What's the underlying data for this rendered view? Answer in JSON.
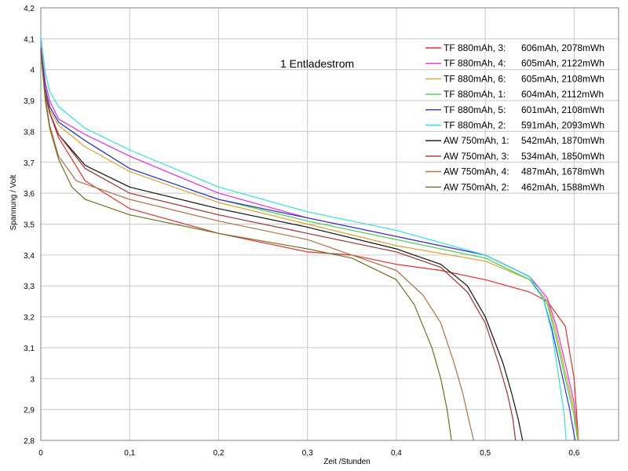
{
  "chart_data": {
    "type": "line",
    "annotation": "1 Entladestrom",
    "xlabel": "Zeit /Stunden",
    "ylabel": "Spannung / Volt",
    "xlim": [
      0,
      0.65
    ],
    "ylim": [
      2.8,
      4.2
    ],
    "xticks": [
      "0",
      "0,1",
      "0,2",
      "0,3",
      "0,4",
      "0,5",
      "0,6"
    ],
    "xtick_values": [
      0,
      0.1,
      0.2,
      0.3,
      0.4,
      0.5,
      0.6
    ],
    "yticks": [
      "2,8",
      "2,9",
      "3",
      "3,1",
      "3,2",
      "3,3",
      "3,4",
      "3,5",
      "3,6",
      "3,7",
      "3,8",
      "3,9",
      "4",
      "4,1",
      "4,2"
    ],
    "ytick_values": [
      2.8,
      2.9,
      3.0,
      3.1,
      3.2,
      3.3,
      3.4,
      3.5,
      3.6,
      3.7,
      3.8,
      3.9,
      4.0,
      4.1,
      4.2
    ],
    "grid": true,
    "legend_position": "top-right",
    "series": [
      {
        "name": "TF 880mAh, 3:",
        "info": "606mAh, 2078mWh",
        "color": "#e03030",
        "x": [
          0,
          0.005,
          0.01,
          0.02,
          0.05,
          0.1,
          0.2,
          0.3,
          0.35,
          0.4,
          0.45,
          0.5,
          0.55,
          0.57,
          0.59,
          0.6,
          0.605
        ],
        "y": [
          4.06,
          3.93,
          3.86,
          3.78,
          3.64,
          3.55,
          3.47,
          3.41,
          3.4,
          3.37,
          3.35,
          3.32,
          3.28,
          3.25,
          3.17,
          3.0,
          2.8
        ]
      },
      {
        "name": "TF 880mAh, 4:",
        "info": "605mAh, 2122mWh",
        "color": "#e030e0",
        "x": [
          0,
          0.005,
          0.01,
          0.02,
          0.05,
          0.1,
          0.2,
          0.3,
          0.4,
          0.5,
          0.55,
          0.57,
          0.58,
          0.59,
          0.6,
          0.605
        ],
        "y": [
          4.08,
          3.96,
          3.9,
          3.84,
          3.79,
          3.72,
          3.6,
          3.52,
          3.46,
          3.4,
          3.33,
          3.26,
          3.17,
          3.05,
          2.92,
          2.8
        ]
      },
      {
        "name": "TF 880mAh, 6:",
        "info": "605mAh, 2108mWh",
        "color": "#e0a030",
        "x": [
          0,
          0.005,
          0.01,
          0.02,
          0.05,
          0.1,
          0.2,
          0.3,
          0.4,
          0.5,
          0.55,
          0.57,
          0.58,
          0.59,
          0.6,
          0.605
        ],
        "y": [
          4.06,
          3.93,
          3.87,
          3.82,
          3.75,
          3.67,
          3.57,
          3.5,
          3.43,
          3.38,
          3.32,
          3.25,
          3.15,
          3.02,
          2.9,
          2.8
        ]
      },
      {
        "name": "TF 880mAh, 1:",
        "info": "604mAh, 2112mWh",
        "color": "#40d040",
        "x": [
          0,
          0.005,
          0.01,
          0.02,
          0.05,
          0.1,
          0.2,
          0.3,
          0.4,
          0.5,
          0.55,
          0.57,
          0.58,
          0.59,
          0.6,
          0.604
        ],
        "y": [
          4.07,
          3.94,
          3.88,
          3.83,
          3.77,
          3.68,
          3.58,
          3.51,
          3.45,
          3.39,
          3.32,
          3.24,
          3.13,
          3.0,
          2.88,
          2.8
        ]
      },
      {
        "name": "TF 880mAh, 5:",
        "info": "601mAh, 2108mWh",
        "color": "#3030d0",
        "x": [
          0,
          0.005,
          0.01,
          0.02,
          0.05,
          0.1,
          0.2,
          0.3,
          0.4,
          0.5,
          0.55,
          0.565,
          0.575,
          0.585,
          0.595,
          0.601
        ],
        "y": [
          4.07,
          3.94,
          3.88,
          3.83,
          3.77,
          3.68,
          3.58,
          3.52,
          3.46,
          3.4,
          3.33,
          3.26,
          3.16,
          3.03,
          2.9,
          2.8
        ]
      },
      {
        "name": "TF 880mAh, 2:",
        "info": "591mAh, 2093mWh",
        "color": "#30e0e0",
        "x": [
          0,
          0.005,
          0.01,
          0.02,
          0.05,
          0.1,
          0.2,
          0.3,
          0.4,
          0.5,
          0.55,
          0.565,
          0.575,
          0.583,
          0.589,
          0.591
        ],
        "y": [
          4.11,
          3.99,
          3.93,
          3.88,
          3.81,
          3.74,
          3.62,
          3.54,
          3.48,
          3.4,
          3.33,
          3.26,
          3.15,
          3.0,
          2.88,
          2.8
        ]
      },
      {
        "name": "AW 750mAh, 1:",
        "info": "542mAh, 1870mWh",
        "color": "#101010",
        "x": [
          0,
          0.005,
          0.01,
          0.02,
          0.05,
          0.1,
          0.2,
          0.3,
          0.4,
          0.45,
          0.48,
          0.5,
          0.52,
          0.53,
          0.537,
          0.542
        ],
        "y": [
          4.06,
          3.92,
          3.86,
          3.79,
          3.69,
          3.62,
          3.55,
          3.49,
          3.42,
          3.37,
          3.3,
          3.2,
          3.05,
          2.95,
          2.87,
          2.8
        ]
      },
      {
        "name": "AW 750mAh, 3:",
        "info": "534mAh, 1850mWh",
        "color": "#a03030",
        "x": [
          0,
          0.005,
          0.01,
          0.02,
          0.05,
          0.1,
          0.2,
          0.3,
          0.4,
          0.45,
          0.48,
          0.5,
          0.515,
          0.525,
          0.531,
          0.534
        ],
        "y": [
          4.06,
          3.92,
          3.86,
          3.79,
          3.68,
          3.6,
          3.53,
          3.47,
          3.41,
          3.36,
          3.28,
          3.18,
          3.05,
          2.95,
          2.87,
          2.8
        ]
      },
      {
        "name": "AW 750mAh, 4:",
        "info": "487mAh, 1678mWh",
        "color": "#b07040",
        "x": [
          0,
          0.005,
          0.01,
          0.02,
          0.04,
          0.1,
          0.2,
          0.3,
          0.35,
          0.4,
          0.43,
          0.45,
          0.465,
          0.475,
          0.482,
          0.487
        ],
        "y": [
          4.05,
          3.91,
          3.82,
          3.72,
          3.64,
          3.58,
          3.51,
          3.45,
          3.4,
          3.35,
          3.27,
          3.18,
          3.05,
          2.95,
          2.86,
          2.8
        ]
      },
      {
        "name": "AW 750mAh, 2:",
        "info": "462mAh, 1588mWh",
        "color": "#707020",
        "x": [
          0,
          0.005,
          0.01,
          0.02,
          0.035,
          0.05,
          0.1,
          0.2,
          0.3,
          0.35,
          0.4,
          0.42,
          0.44,
          0.45,
          0.457,
          0.462
        ],
        "y": [
          4.06,
          3.9,
          3.81,
          3.71,
          3.62,
          3.58,
          3.53,
          3.47,
          3.42,
          3.39,
          3.32,
          3.24,
          3.1,
          3.0,
          2.9,
          2.8
        ]
      }
    ]
  }
}
